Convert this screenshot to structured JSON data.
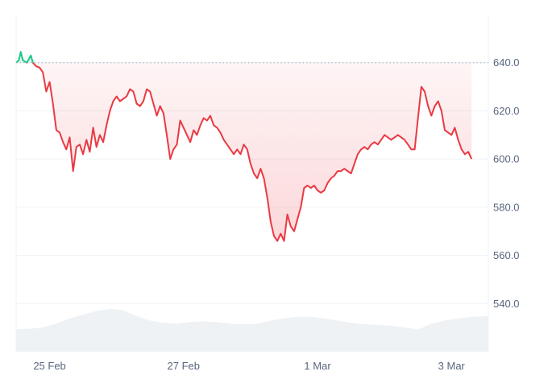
{
  "chart_data": {
    "type": "area",
    "x_tick_labels": [
      "25 Feb",
      "27 Feb",
      "1 Mar",
      "3 Mar"
    ],
    "x_tick_positions": [
      0.5,
      2.5,
      4.5,
      6.5
    ],
    "y_ticks": [
      "640.0",
      "620.0",
      "600.0",
      "580.0",
      "560.0",
      "540.0"
    ],
    "y_tick_values": [
      640,
      620,
      600,
      580,
      560,
      540
    ],
    "ylim": [
      520,
      660
    ],
    "xlim": [
      0,
      7.05
    ],
    "baseline": 640,
    "colors": {
      "above": "#16c784",
      "below": "#ea3943",
      "volume": "#eff2f5",
      "grid": "#eff2f5"
    },
    "series": [
      {
        "values": [
          [
            0.0,
            640
          ],
          [
            0.04,
            641
          ],
          [
            0.07,
            644.5
          ],
          [
            0.1,
            641
          ],
          [
            0.13,
            640.5
          ],
          [
            0.16,
            640
          ],
          [
            0.19,
            641.5
          ],
          [
            0.22,
            643
          ],
          [
            0.25,
            640
          ],
          [
            0.3,
            638.5
          ],
          [
            0.35,
            638
          ],
          [
            0.4,
            636
          ],
          [
            0.45,
            628
          ],
          [
            0.5,
            632
          ],
          [
            0.55,
            623
          ],
          [
            0.6,
            612
          ],
          [
            0.65,
            611
          ],
          [
            0.7,
            607
          ],
          [
            0.75,
            604
          ],
          [
            0.8,
            609
          ],
          [
            0.85,
            595
          ],
          [
            0.9,
            605
          ],
          [
            0.95,
            606
          ],
          [
            1.0,
            602
          ],
          [
            1.05,
            608
          ],
          [
            1.1,
            603
          ],
          [
            1.15,
            613
          ],
          [
            1.2,
            605
          ],
          [
            1.25,
            610
          ],
          [
            1.3,
            607
          ],
          [
            1.35,
            614
          ],
          [
            1.4,
            620
          ],
          [
            1.45,
            624
          ],
          [
            1.5,
            626
          ],
          [
            1.55,
            624
          ],
          [
            1.6,
            625
          ],
          [
            1.65,
            626
          ],
          [
            1.7,
            629
          ],
          [
            1.75,
            628
          ],
          [
            1.8,
            623
          ],
          [
            1.85,
            622
          ],
          [
            1.9,
            624
          ],
          [
            1.95,
            629
          ],
          [
            2.0,
            628
          ],
          [
            2.05,
            623
          ],
          [
            2.1,
            618
          ],
          [
            2.15,
            622
          ],
          [
            2.2,
            619
          ],
          [
            2.25,
            610
          ],
          [
            2.3,
            600
          ],
          [
            2.35,
            604
          ],
          [
            2.4,
            606
          ],
          [
            2.45,
            616
          ],
          [
            2.5,
            613
          ],
          [
            2.55,
            610
          ],
          [
            2.6,
            607
          ],
          [
            2.65,
            612
          ],
          [
            2.7,
            610
          ],
          [
            2.75,
            614
          ],
          [
            2.8,
            617
          ],
          [
            2.85,
            616
          ],
          [
            2.9,
            618
          ],
          [
            2.95,
            614
          ],
          [
            3.0,
            613
          ],
          [
            3.05,
            611
          ],
          [
            3.1,
            608
          ],
          [
            3.15,
            606
          ],
          [
            3.2,
            604
          ],
          [
            3.25,
            602
          ],
          [
            3.3,
            604
          ],
          [
            3.35,
            602
          ],
          [
            3.4,
            606
          ],
          [
            3.45,
            604
          ],
          [
            3.5,
            598
          ],
          [
            3.55,
            594
          ],
          [
            3.6,
            592
          ],
          [
            3.65,
            596
          ],
          [
            3.7,
            592
          ],
          [
            3.75,
            584
          ],
          [
            3.8,
            574
          ],
          [
            3.85,
            568
          ],
          [
            3.9,
            566
          ],
          [
            3.95,
            569
          ],
          [
            4.0,
            566
          ],
          [
            4.05,
            577
          ],
          [
            4.1,
            572
          ],
          [
            4.15,
            570
          ],
          [
            4.2,
            575
          ],
          [
            4.25,
            580
          ],
          [
            4.3,
            588
          ],
          [
            4.35,
            589
          ],
          [
            4.4,
            588
          ],
          [
            4.45,
            589
          ],
          [
            4.5,
            587
          ],
          [
            4.55,
            586
          ],
          [
            4.6,
            587
          ],
          [
            4.65,
            590
          ],
          [
            4.7,
            592
          ],
          [
            4.75,
            593
          ],
          [
            4.8,
            595
          ],
          [
            4.85,
            595
          ],
          [
            4.9,
            596
          ],
          [
            4.95,
            595
          ],
          [
            5.0,
            594
          ],
          [
            5.05,
            598
          ],
          [
            5.1,
            602
          ],
          [
            5.15,
            604
          ],
          [
            5.2,
            605
          ],
          [
            5.25,
            604
          ],
          [
            5.3,
            606
          ],
          [
            5.35,
            607
          ],
          [
            5.4,
            606
          ],
          [
            5.45,
            608
          ],
          [
            5.5,
            610
          ],
          [
            5.55,
            609
          ],
          [
            5.6,
            608
          ],
          [
            5.65,
            609
          ],
          [
            5.7,
            610
          ],
          [
            5.75,
            609
          ],
          [
            5.8,
            608
          ],
          [
            5.85,
            606
          ],
          [
            5.9,
            604
          ],
          [
            5.95,
            604
          ],
          [
            6.0,
            617
          ],
          [
            6.05,
            630
          ],
          [
            6.1,
            628
          ],
          [
            6.15,
            622
          ],
          [
            6.2,
            618
          ],
          [
            6.25,
            622
          ],
          [
            6.3,
            624
          ],
          [
            6.35,
            620
          ],
          [
            6.4,
            612
          ],
          [
            6.45,
            611
          ],
          [
            6.5,
            610
          ],
          [
            6.55,
            613
          ],
          [
            6.6,
            608
          ],
          [
            6.65,
            604
          ],
          [
            6.7,
            602
          ],
          [
            6.75,
            603
          ],
          [
            6.8,
            600
          ]
        ]
      }
    ],
    "volume": [
      [
        0.0,
        0.3
      ],
      [
        0.2,
        0.31
      ],
      [
        0.4,
        0.33
      ],
      [
        0.6,
        0.38
      ],
      [
        0.8,
        0.45
      ],
      [
        1.0,
        0.5
      ],
      [
        1.2,
        0.55
      ],
      [
        1.4,
        0.58
      ],
      [
        1.6,
        0.56
      ],
      [
        1.8,
        0.48
      ],
      [
        2.0,
        0.42
      ],
      [
        2.2,
        0.39
      ],
      [
        2.4,
        0.38
      ],
      [
        2.6,
        0.4
      ],
      [
        2.8,
        0.41
      ],
      [
        3.0,
        0.4
      ],
      [
        3.2,
        0.38
      ],
      [
        3.4,
        0.37
      ],
      [
        3.6,
        0.38
      ],
      [
        3.8,
        0.42
      ],
      [
        4.0,
        0.45
      ],
      [
        4.2,
        0.47
      ],
      [
        4.4,
        0.47
      ],
      [
        4.6,
        0.45
      ],
      [
        4.8,
        0.42
      ],
      [
        5.0,
        0.39
      ],
      [
        5.2,
        0.37
      ],
      [
        5.4,
        0.36
      ],
      [
        5.6,
        0.35
      ],
      [
        5.8,
        0.33
      ],
      [
        6.0,
        0.3
      ],
      [
        6.2,
        0.38
      ],
      [
        6.4,
        0.42
      ],
      [
        6.6,
        0.45
      ],
      [
        6.8,
        0.47
      ],
      [
        7.05,
        0.48
      ]
    ]
  }
}
